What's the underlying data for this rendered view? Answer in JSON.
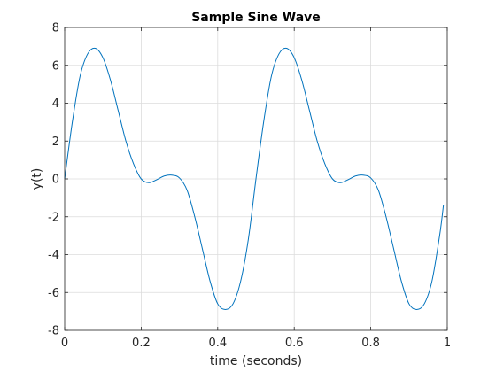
{
  "chart_data": {
    "type": "line",
    "title": "Sample Sine Wave",
    "xlabel": "time (seconds)",
    "ylabel": "y(t)",
    "xlim": [
      0,
      1
    ],
    "ylim": [
      -8,
      8
    ],
    "xticks": [
      0,
      0.2,
      0.4,
      0.6,
      0.8,
      1
    ],
    "xtick_labels": [
      "0",
      "0.2",
      "0.4",
      "0.6",
      "0.8",
      "1"
    ],
    "yticks": [
      -8,
      -6,
      -4,
      -2,
      0,
      2,
      4,
      6,
      8
    ],
    "ytick_labels": [
      "-8",
      "-6",
      "-4",
      "-2",
      "0",
      "2",
      "4",
      "6",
      "8"
    ],
    "grid": true,
    "colors": {
      "line": "#0072bd",
      "grid": "#dcdcdc",
      "axes": "#262626"
    },
    "series": [
      {
        "color": "#0072bd",
        "x": [
          0,
          0.02,
          0.04,
          0.06,
          0.08,
          0.1,
          0.12,
          0.14,
          0.16,
          0.18,
          0.2,
          0.22,
          0.24,
          0.26,
          0.28,
          0.3,
          0.32,
          0.34,
          0.36,
          0.38,
          0.4,
          0.42,
          0.44,
          0.46,
          0.48,
          0.5,
          0.52,
          0.54,
          0.56,
          0.58,
          0.6,
          0.62,
          0.64,
          0.66,
          0.68,
          0.7,
          0.72,
          0.74,
          0.76,
          0.78,
          0.8,
          0.82,
          0.84,
          0.86,
          0.88,
          0.9,
          0.92,
          0.94,
          0.96,
          0.98,
          0.99
        ],
        "y": [
          0,
          3.0,
          5.4,
          6.6,
          6.9,
          6.4,
          5.2,
          3.6,
          2.0,
          0.8,
          0.0,
          -0.2,
          -0.05,
          0.15,
          0.2,
          0.05,
          -0.6,
          -2.0,
          -3.7,
          -5.4,
          -6.6,
          -6.9,
          -6.6,
          -5.4,
          -3.2,
          0.0,
          3.0,
          5.4,
          6.6,
          6.9,
          6.4,
          5.2,
          3.6,
          2.0,
          0.8,
          0.0,
          -0.2,
          -0.05,
          0.15,
          0.2,
          0.05,
          -0.6,
          -2.0,
          -3.7,
          -5.4,
          -6.6,
          -6.9,
          -6.6,
          -5.4,
          -3.0,
          -1.4
        ]
      }
    ]
  }
}
